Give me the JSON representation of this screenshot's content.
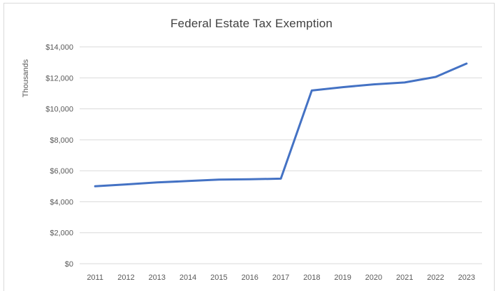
{
  "chart_data": {
    "type": "line",
    "title": "Federal Estate Tax Exemption",
    "xlabel": "",
    "ylabel": "Thousands",
    "categories": [
      "2011",
      "2012",
      "2013",
      "2014",
      "2015",
      "2016",
      "2017",
      "2018",
      "2019",
      "2020",
      "2021",
      "2022",
      "2023"
    ],
    "series": [
      {
        "name": "Federal Estate Tax Exemption",
        "values": [
          5000,
          5120,
          5250,
          5340,
          5430,
          5450,
          5490,
          11180,
          11400,
          11580,
          11700,
          12060,
          12920
        ],
        "color": "#4472C4"
      }
    ],
    "ylim": [
      0,
      14000
    ],
    "y_ticks": {
      "values": [
        0,
        2000,
        4000,
        6000,
        8000,
        10000,
        12000,
        14000
      ],
      "labels": [
        "$0",
        "$2,000",
        "$4,000",
        "$6,000",
        "$8,000",
        "$10,000",
        "$12,000",
        "$14,000"
      ]
    },
    "grid": true,
    "legend": "none"
  },
  "colors": {
    "line": "#4472C4",
    "gridline": "#d9d9d9",
    "axis_text": "#595959",
    "title_text": "#404040",
    "frame_border": "#d9d9d9"
  }
}
